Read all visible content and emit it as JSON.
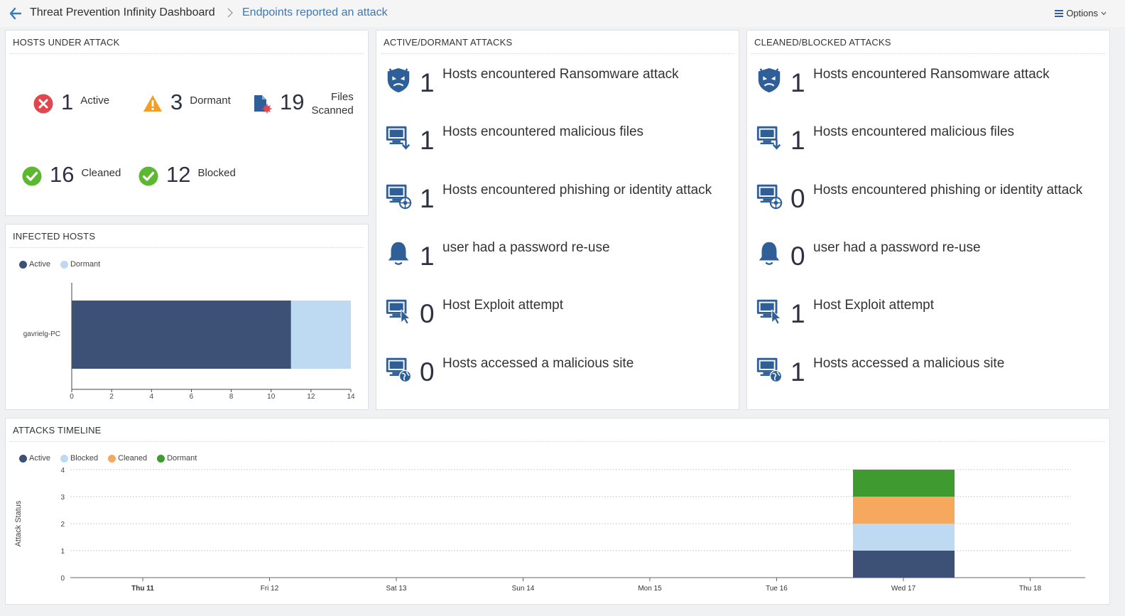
{
  "header": {
    "title": "Threat Prevention Infinity Dashboard",
    "current": "Endpoints reported an attack",
    "options_label": "Options"
  },
  "hosts_under_attack": {
    "title": "HOSTS UNDER ATTACK",
    "active": {
      "value": "1",
      "label": "Active"
    },
    "dormant": {
      "value": "3",
      "label": "Dormant"
    },
    "files": {
      "value": "19",
      "label_line1": "Files",
      "label_line2": "Scanned"
    },
    "cleaned": {
      "value": "16",
      "label": "Cleaned"
    },
    "blocked": {
      "value": "12",
      "label": "Blocked"
    }
  },
  "infected_hosts": {
    "title": "INFECTED HOSTS",
    "legend": [
      "Active",
      "Dormant"
    ]
  },
  "active_dormant": {
    "title": "ACTIVE/DORMANT ATTACKS",
    "rows": [
      {
        "icon": "ransomware-shield-icon",
        "value": "1",
        "text": "Hosts encountered Ransomware attack"
      },
      {
        "icon": "malicious-file-monitor-icon",
        "value": "1",
        "text": "Hosts encountered malicious files"
      },
      {
        "icon": "phishing-monitor-icon",
        "value": "1",
        "text": "Hosts encountered phishing or identity attack"
      },
      {
        "icon": "bell-icon",
        "value": "1",
        "text": "user had a password re-use"
      },
      {
        "icon": "exploit-cursor-monitor-icon",
        "value": "0",
        "text": "Host Exploit attempt"
      },
      {
        "icon": "malicious-site-globe-icon",
        "value": "0",
        "text": "Hosts accessed a malicious site"
      }
    ]
  },
  "cleaned_blocked": {
    "title": "CLEANED/BLOCKED ATTACKS",
    "rows": [
      {
        "icon": "ransomware-shield-icon",
        "value": "1",
        "text": "Hosts encountered Ransomware attack"
      },
      {
        "icon": "malicious-file-monitor-icon",
        "value": "1",
        "text": "Hosts encountered malicious files"
      },
      {
        "icon": "phishing-monitor-icon",
        "value": "0",
        "text": "Hosts encountered phishing or identity attack"
      },
      {
        "icon": "bell-icon",
        "value": "0",
        "text": "user had a password re-use"
      },
      {
        "icon": "exploit-cursor-monitor-icon",
        "value": "1",
        "text": "Host Exploit attempt"
      },
      {
        "icon": "malicious-site-globe-icon",
        "value": "1",
        "text": "Hosts accessed a malicious site"
      }
    ]
  },
  "timeline": {
    "title": "ATTACKS TIMELINE",
    "legend": [
      "Active",
      "Blocked",
      "Cleaned",
      "Dormant"
    ]
  },
  "colors": {
    "active": "#3d5075",
    "dormant_bar": "#bddaf2",
    "blocked": "#bddaf2",
    "cleaned": "#f5a85e",
    "dormant_timeline": "#3f9b2f",
    "accent_link": "#3a79b8",
    "icon_blue": "#2f5f99",
    "error_red": "#e2474f",
    "warning": "#f2a024",
    "ok_green": "#5cb82e"
  },
  "chart_data": [
    {
      "type": "bar",
      "orientation": "horizontal",
      "stacked": true,
      "categories": [
        "gavrielg-PC"
      ],
      "series": [
        {
          "name": "Active",
          "values": [
            11
          ]
        },
        {
          "name": "Dormant",
          "values": [
            3
          ]
        }
      ],
      "xticks": [
        0,
        2,
        4,
        6,
        8,
        10,
        12,
        14
      ],
      "xlim": [
        0,
        14
      ]
    },
    {
      "type": "bar",
      "stacked": true,
      "categories": [
        "Thu 11",
        "Fri 12",
        "Sat 13",
        "Sun 14",
        "Mon 15",
        "Tue 16",
        "Wed 17",
        "Thu 18"
      ],
      "series": [
        {
          "name": "Active",
          "values": [
            0,
            0,
            0,
            0,
            0,
            0,
            1,
            0
          ]
        },
        {
          "name": "Blocked",
          "values": [
            0,
            0,
            0,
            0,
            0,
            0,
            1,
            0
          ]
        },
        {
          "name": "Cleaned",
          "values": [
            0,
            0,
            0,
            0,
            0,
            0,
            1,
            0
          ]
        },
        {
          "name": "Dormant",
          "values": [
            0,
            0,
            0,
            0,
            0,
            0,
            1,
            0
          ]
        }
      ],
      "ylabel": "Attack Status",
      "yticks": [
        0,
        1,
        2,
        3,
        4
      ],
      "ylim": [
        0,
        4
      ],
      "grid": true,
      "legend": "top-left"
    }
  ]
}
